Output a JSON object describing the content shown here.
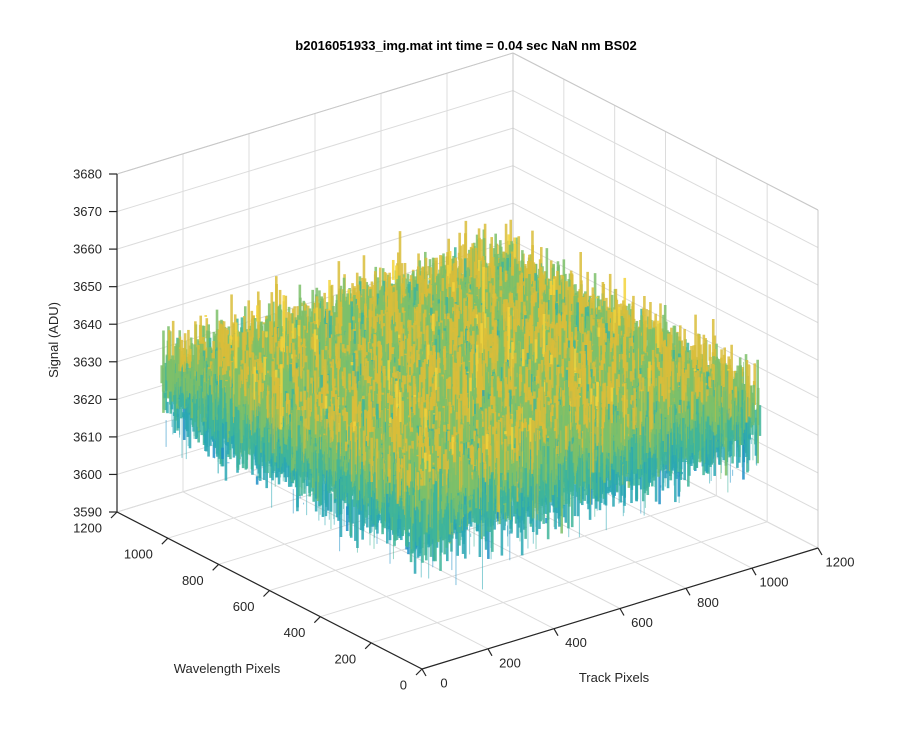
{
  "chart_data": {
    "type": "surface3d",
    "title": "b2016051933_img.mat int time = 0.04 sec  NaN nm BS02",
    "xlabel": "Track Pixels",
    "ylabel": "Wavelength Pixels",
    "zlabel": "Signal (ADU)",
    "xlim": [
      0,
      1200
    ],
    "ylim": [
      0,
      1200
    ],
    "zlim": [
      3590,
      3680
    ],
    "x_ticks": [
      0,
      200,
      400,
      600,
      800,
      1000,
      1200
    ],
    "y_ticks": [
      0,
      200,
      400,
      600,
      800,
      1000,
      1200
    ],
    "z_ticks": [
      3590,
      3600,
      3610,
      3620,
      3630,
      3640,
      3650,
      3660,
      3670,
      3680
    ],
    "x_tick_labels": [
      "0",
      "200",
      "400",
      "600",
      "800",
      "1000",
      "1200"
    ],
    "y_tick_labels": [
      "0",
      "200",
      "400",
      "600",
      "800",
      "1000",
      "1200"
    ],
    "z_tick_labels": [
      "3590",
      "3600",
      "3610",
      "3620",
      "3630",
      "3640",
      "3650",
      "3660",
      "3670",
      "3680"
    ],
    "data_extent": {
      "x": [
        0,
        1024
      ],
      "y": [
        0,
        1024
      ]
    },
    "signal": {
      "mean": 3631,
      "std": 6.5,
      "min_visible": 3607,
      "max_visible": 3660
    },
    "grid": true,
    "view": "default 3D (azimuth -37.5, elevation 30)",
    "colormap": [
      "#1f8fc7",
      "#2aa7b4",
      "#3fb59a",
      "#7cc06a",
      "#d9bd3a",
      "#f3d43b"
    ]
  }
}
